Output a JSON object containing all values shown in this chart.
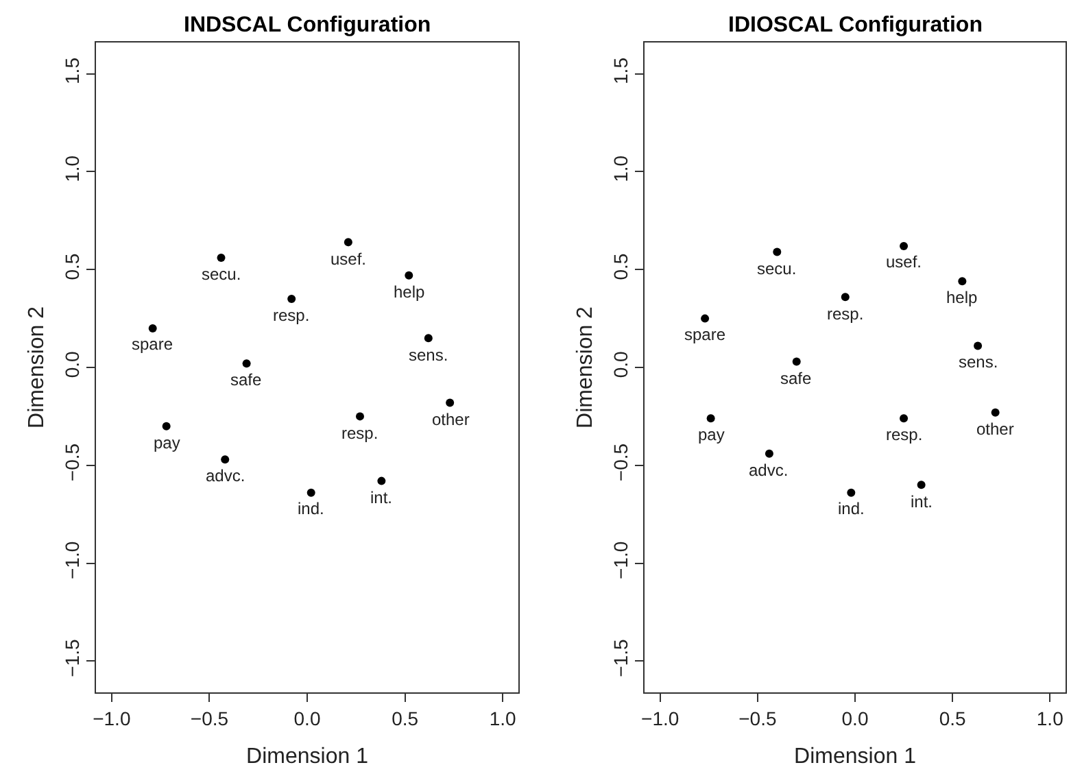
{
  "chart_data": [
    {
      "type": "scatter",
      "title": "INDSCAL Configuration",
      "xlabel": "Dimension 1",
      "ylabel": "Dimension 2",
      "xlim": [
        -1.08,
        1.08
      ],
      "ylim": [
        -1.66,
        1.66
      ],
      "xticks": [
        {
          "value": -1,
          "label": "−1.0"
        },
        {
          "value": -0.5,
          "label": "−0.5"
        },
        {
          "value": 0,
          "label": "0.0"
        },
        {
          "value": 0.5,
          "label": "0.5"
        },
        {
          "value": 1,
          "label": "1.0"
        }
      ],
      "yticks": [
        {
          "value": -1.5,
          "label": "−1.5"
        },
        {
          "value": -1,
          "label": "−1.0"
        },
        {
          "value": -0.5,
          "label": "−0.5"
        },
        {
          "value": 0,
          "label": "0.0"
        },
        {
          "value": 0.5,
          "label": "0.5"
        },
        {
          "value": 1,
          "label": "1.0"
        },
        {
          "value": 1.5,
          "label": "1.5"
        }
      ],
      "marker": "circle",
      "series": [
        {
          "color": "#000000",
          "x": [
            -0.44,
            0.21,
            0.52,
            -0.08,
            -0.79,
            0.62,
            -0.31,
            0.73,
            0.27,
            -0.72,
            -0.42,
            0.02,
            0.38
          ],
          "values": [
            0.56,
            0.64,
            0.47,
            0.35,
            0.2,
            0.15,
            0.02,
            -0.18,
            -0.25,
            -0.3,
            -0.47,
            -0.64,
            -0.58
          ]
        }
      ],
      "annotations": [
        {
          "text": "secu.",
          "x": -0.44,
          "y": 0.56
        },
        {
          "text": "usef.",
          "x": 0.21,
          "y": 0.64
        },
        {
          "text": "help",
          "x": 0.52,
          "y": 0.47
        },
        {
          "text": "resp.",
          "x": -0.08,
          "y": 0.35
        },
        {
          "text": "spare",
          "x": -0.79,
          "y": 0.2
        },
        {
          "text": "sens.",
          "x": 0.62,
          "y": 0.15
        },
        {
          "text": "safe",
          "x": -0.31,
          "y": 0.02
        },
        {
          "text": "other",
          "x": 0.73,
          "y": -0.18
        },
        {
          "text": "resp.",
          "x": 0.27,
          "y": -0.25
        },
        {
          "text": "pay",
          "x": -0.72,
          "y": -0.3
        },
        {
          "text": "advc.",
          "x": -0.42,
          "y": -0.47
        },
        {
          "text": "ind.",
          "x": 0.02,
          "y": -0.64
        },
        {
          "text": "int.",
          "x": 0.38,
          "y": -0.58
        }
      ]
    },
    {
      "type": "scatter",
      "title": "IDIOSCAL Configuration",
      "xlabel": "Dimension 1",
      "ylabel": "Dimension 2",
      "xlim": [
        -1.08,
        1.08
      ],
      "ylim": [
        -1.66,
        1.66
      ],
      "xticks": [
        {
          "value": -1,
          "label": "−1.0"
        },
        {
          "value": -0.5,
          "label": "−0.5"
        },
        {
          "value": 0,
          "label": "0.0"
        },
        {
          "value": 0.5,
          "label": "0.5"
        },
        {
          "value": 1,
          "label": "1.0"
        }
      ],
      "yticks": [
        {
          "value": -1.5,
          "label": "−1.5"
        },
        {
          "value": -1,
          "label": "−1.0"
        },
        {
          "value": -0.5,
          "label": "−0.5"
        },
        {
          "value": 0,
          "label": "0.0"
        },
        {
          "value": 0.5,
          "label": "0.5"
        },
        {
          "value": 1,
          "label": "1.0"
        },
        {
          "value": 1.5,
          "label": "1.5"
        }
      ],
      "marker": "circle",
      "series": [
        {
          "color": "#000000",
          "x": [
            -0.4,
            0.25,
            0.55,
            -0.05,
            -0.77,
            0.63,
            -0.3,
            0.72,
            0.25,
            -0.74,
            -0.44,
            -0.02,
            0.34
          ],
          "values": [
            0.59,
            0.62,
            0.44,
            0.36,
            0.25,
            0.11,
            0.03,
            -0.23,
            -0.26,
            -0.26,
            -0.44,
            -0.64,
            -0.6
          ]
        }
      ],
      "annotations": [
        {
          "text": "secu.",
          "x": -0.4,
          "y": 0.59
        },
        {
          "text": "usef.",
          "x": 0.25,
          "y": 0.62
        },
        {
          "text": "help",
          "x": 0.55,
          "y": 0.44
        },
        {
          "text": "resp.",
          "x": -0.05,
          "y": 0.36
        },
        {
          "text": "spare",
          "x": -0.77,
          "y": 0.25
        },
        {
          "text": "sens.",
          "x": 0.63,
          "y": 0.11
        },
        {
          "text": "safe",
          "x": -0.3,
          "y": 0.03
        },
        {
          "text": "other",
          "x": 0.72,
          "y": -0.23
        },
        {
          "text": "resp.",
          "x": 0.25,
          "y": -0.26
        },
        {
          "text": "pay",
          "x": -0.74,
          "y": -0.26
        },
        {
          "text": "advc.",
          "x": -0.44,
          "y": -0.44
        },
        {
          "text": "ind.",
          "x": -0.02,
          "y": -0.64
        },
        {
          "text": "int.",
          "x": 0.34,
          "y": -0.6
        }
      ]
    }
  ]
}
